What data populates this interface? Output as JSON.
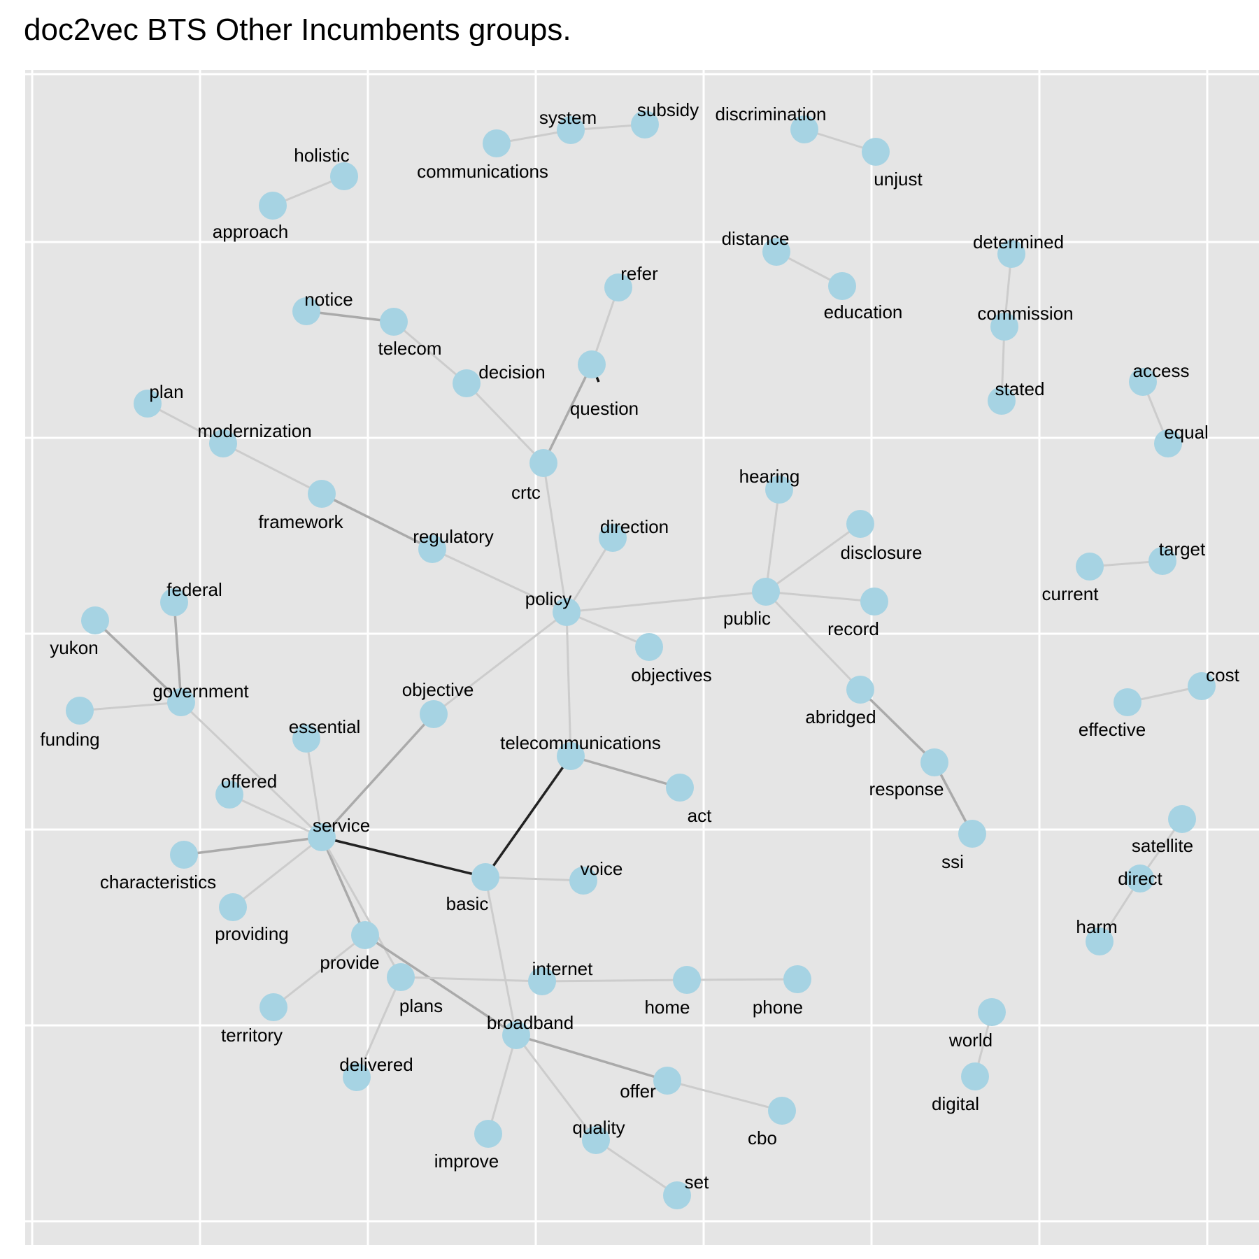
{
  "title": "doc2vec BTS Other Incumbents groups.",
  "colors": {
    "panel": "#E5E5E5",
    "grid": "#FFFFFF",
    "node": "#A6D3E3"
  },
  "nodes": [
    {
      "id": "holistic",
      "label": "holistic"
    },
    {
      "id": "approach",
      "label": "approach"
    },
    {
      "id": "communications",
      "label": "communications"
    },
    {
      "id": "system",
      "label": "system"
    },
    {
      "id": "subsidy",
      "label": "subsidy"
    },
    {
      "id": "discrimination",
      "label": "discrimination"
    },
    {
      "id": "unjust",
      "label": "unjust"
    },
    {
      "id": "distance",
      "label": "distance"
    },
    {
      "id": "education",
      "label": "education"
    },
    {
      "id": "determined",
      "label": "determined"
    },
    {
      "id": "commission",
      "label": "commission"
    },
    {
      "id": "stated",
      "label": "stated"
    },
    {
      "id": "refer",
      "label": "refer"
    },
    {
      "id": "notice",
      "label": "notice"
    },
    {
      "id": "telecom",
      "label": "telecom"
    },
    {
      "id": "decision",
      "label": "decision"
    },
    {
      "id": "question",
      "label": "question"
    },
    {
      "id": "access",
      "label": "access"
    },
    {
      "id": "equal",
      "label": "equal"
    },
    {
      "id": "plan",
      "label": "plan"
    },
    {
      "id": "modernization",
      "label": "modernization"
    },
    {
      "id": "crtc",
      "label": "crtc"
    },
    {
      "id": "framework",
      "label": "framework"
    },
    {
      "id": "hearing",
      "label": "hearing"
    },
    {
      "id": "regulatory",
      "label": "regulatory"
    },
    {
      "id": "direction",
      "label": "direction"
    },
    {
      "id": "disclosure",
      "label": "disclosure"
    },
    {
      "id": "target",
      "label": "target"
    },
    {
      "id": "current",
      "label": "current"
    },
    {
      "id": "policy",
      "label": "policy"
    },
    {
      "id": "public",
      "label": "public"
    },
    {
      "id": "record",
      "label": "record"
    },
    {
      "id": "federal",
      "label": "federal"
    },
    {
      "id": "yukon",
      "label": "yukon"
    },
    {
      "id": "objectives",
      "label": "objectives"
    },
    {
      "id": "objective",
      "label": "objective"
    },
    {
      "id": "government",
      "label": "government"
    },
    {
      "id": "abridged",
      "label": "abridged"
    },
    {
      "id": "cost",
      "label": "cost"
    },
    {
      "id": "funding",
      "label": "funding"
    },
    {
      "id": "effective",
      "label": "effective"
    },
    {
      "id": "essential",
      "label": "essential"
    },
    {
      "id": "telecommunications",
      "label": "telecommunications"
    },
    {
      "id": "response",
      "label": "response"
    },
    {
      "id": "offered",
      "label": "offered"
    },
    {
      "id": "act",
      "label": "act"
    },
    {
      "id": "service",
      "label": "service"
    },
    {
      "id": "ssi",
      "label": "ssi"
    },
    {
      "id": "satellite",
      "label": "satellite"
    },
    {
      "id": "characteristics",
      "label": "characteristics"
    },
    {
      "id": "basic",
      "label": "basic"
    },
    {
      "id": "voice",
      "label": "voice"
    },
    {
      "id": "direct",
      "label": "direct"
    },
    {
      "id": "providing",
      "label": "providing"
    },
    {
      "id": "harm",
      "label": "harm"
    },
    {
      "id": "provide",
      "label": "provide"
    },
    {
      "id": "plans",
      "label": "plans"
    },
    {
      "id": "internet",
      "label": "internet"
    },
    {
      "id": "home",
      "label": "home"
    },
    {
      "id": "phone",
      "label": "phone"
    },
    {
      "id": "territory",
      "label": "territory"
    },
    {
      "id": "broadband",
      "label": "broadband"
    },
    {
      "id": "world",
      "label": "world"
    },
    {
      "id": "delivered",
      "label": "delivered"
    },
    {
      "id": "digital",
      "label": "digital"
    },
    {
      "id": "offer",
      "label": "offer"
    },
    {
      "id": "cbo",
      "label": "cbo"
    },
    {
      "id": "improve",
      "label": "improve"
    },
    {
      "id": "quality",
      "label": "quality"
    },
    {
      "id": "set",
      "label": "set"
    }
  ],
  "edges": [
    {
      "source": "approach",
      "target": "holistic",
      "strength": "light"
    },
    {
      "source": "communications",
      "target": "system",
      "strength": "light"
    },
    {
      "source": "system",
      "target": "subsidy",
      "strength": "light"
    },
    {
      "source": "discrimination",
      "target": "unjust",
      "strength": "light"
    },
    {
      "source": "distance",
      "target": "education",
      "strength": "light"
    },
    {
      "source": "determined",
      "target": "commission",
      "strength": "light"
    },
    {
      "source": "commission",
      "target": "stated",
      "strength": "light"
    },
    {
      "source": "refer",
      "target": "question",
      "strength": "light"
    },
    {
      "source": "question",
      "target": "crtc",
      "strength": "medium"
    },
    {
      "source": "notice",
      "target": "telecom",
      "strength": "medium"
    },
    {
      "source": "telecom",
      "target": "decision",
      "strength": "light"
    },
    {
      "source": "decision",
      "target": "crtc",
      "strength": "light"
    },
    {
      "source": "access",
      "target": "equal",
      "strength": "light"
    },
    {
      "source": "plan",
      "target": "modernization",
      "strength": "light"
    },
    {
      "source": "modernization",
      "target": "framework",
      "strength": "light"
    },
    {
      "source": "framework",
      "target": "regulatory",
      "strength": "medium"
    },
    {
      "source": "regulatory",
      "target": "policy",
      "strength": "light"
    },
    {
      "source": "crtc",
      "target": "policy",
      "strength": "light"
    },
    {
      "source": "direction",
      "target": "policy",
      "strength": "light"
    },
    {
      "source": "policy",
      "target": "public",
      "strength": "light"
    },
    {
      "source": "policy",
      "target": "objectives",
      "strength": "light"
    },
    {
      "source": "policy",
      "target": "objective",
      "strength": "light"
    },
    {
      "source": "policy",
      "target": "telecommunications",
      "strength": "light"
    },
    {
      "source": "hearing",
      "target": "public",
      "strength": "light"
    },
    {
      "source": "disclosure",
      "target": "public",
      "strength": "light"
    },
    {
      "source": "public",
      "target": "record",
      "strength": "light"
    },
    {
      "source": "public",
      "target": "abridged",
      "strength": "light"
    },
    {
      "source": "abridged",
      "target": "response",
      "strength": "medium"
    },
    {
      "source": "response",
      "target": "ssi",
      "strength": "medium"
    },
    {
      "source": "current",
      "target": "target",
      "strength": "light"
    },
    {
      "source": "effective",
      "target": "cost",
      "strength": "light"
    },
    {
      "source": "federal",
      "target": "government",
      "strength": "medium"
    },
    {
      "source": "yukon",
      "target": "government",
      "strength": "medium"
    },
    {
      "source": "funding",
      "target": "government",
      "strength": "light"
    },
    {
      "source": "government",
      "target": "service",
      "strength": "light"
    },
    {
      "source": "objective",
      "target": "service",
      "strength": "medium"
    },
    {
      "source": "essential",
      "target": "service",
      "strength": "light"
    },
    {
      "source": "offered",
      "target": "service",
      "strength": "light"
    },
    {
      "source": "characteristics",
      "target": "service",
      "strength": "medium"
    },
    {
      "source": "providing",
      "target": "service",
      "strength": "light"
    },
    {
      "source": "service",
      "target": "provide",
      "strength": "medium"
    },
    {
      "source": "service",
      "target": "plans",
      "strength": "light"
    },
    {
      "source": "service",
      "target": "basic",
      "strength": "dark"
    },
    {
      "source": "telecommunications",
      "target": "basic",
      "strength": "dark"
    },
    {
      "source": "telecommunications",
      "target": "act",
      "strength": "medium"
    },
    {
      "source": "basic",
      "target": "voice",
      "strength": "light"
    },
    {
      "source": "basic",
      "target": "broadband",
      "strength": "light"
    },
    {
      "source": "provide",
      "target": "territory",
      "strength": "light"
    },
    {
      "source": "provide",
      "target": "broadband",
      "strength": "medium"
    },
    {
      "source": "plans",
      "target": "internet",
      "strength": "light"
    },
    {
      "source": "plans",
      "target": "delivered",
      "strength": "light"
    },
    {
      "source": "internet",
      "target": "home",
      "strength": "light"
    },
    {
      "source": "home",
      "target": "phone",
      "strength": "light"
    },
    {
      "source": "broadband",
      "target": "offer",
      "strength": "medium"
    },
    {
      "source": "broadband",
      "target": "improve",
      "strength": "light"
    },
    {
      "source": "broadband",
      "target": "quality",
      "strength": "light"
    },
    {
      "source": "offer",
      "target": "cbo",
      "strength": "light"
    },
    {
      "source": "quality",
      "target": "set",
      "strength": "light"
    },
    {
      "source": "satellite",
      "target": "direct",
      "strength": "light"
    },
    {
      "source": "direct",
      "target": "harm",
      "strength": "light"
    },
    {
      "source": "world",
      "target": "digital",
      "strength": "light"
    }
  ]
}
